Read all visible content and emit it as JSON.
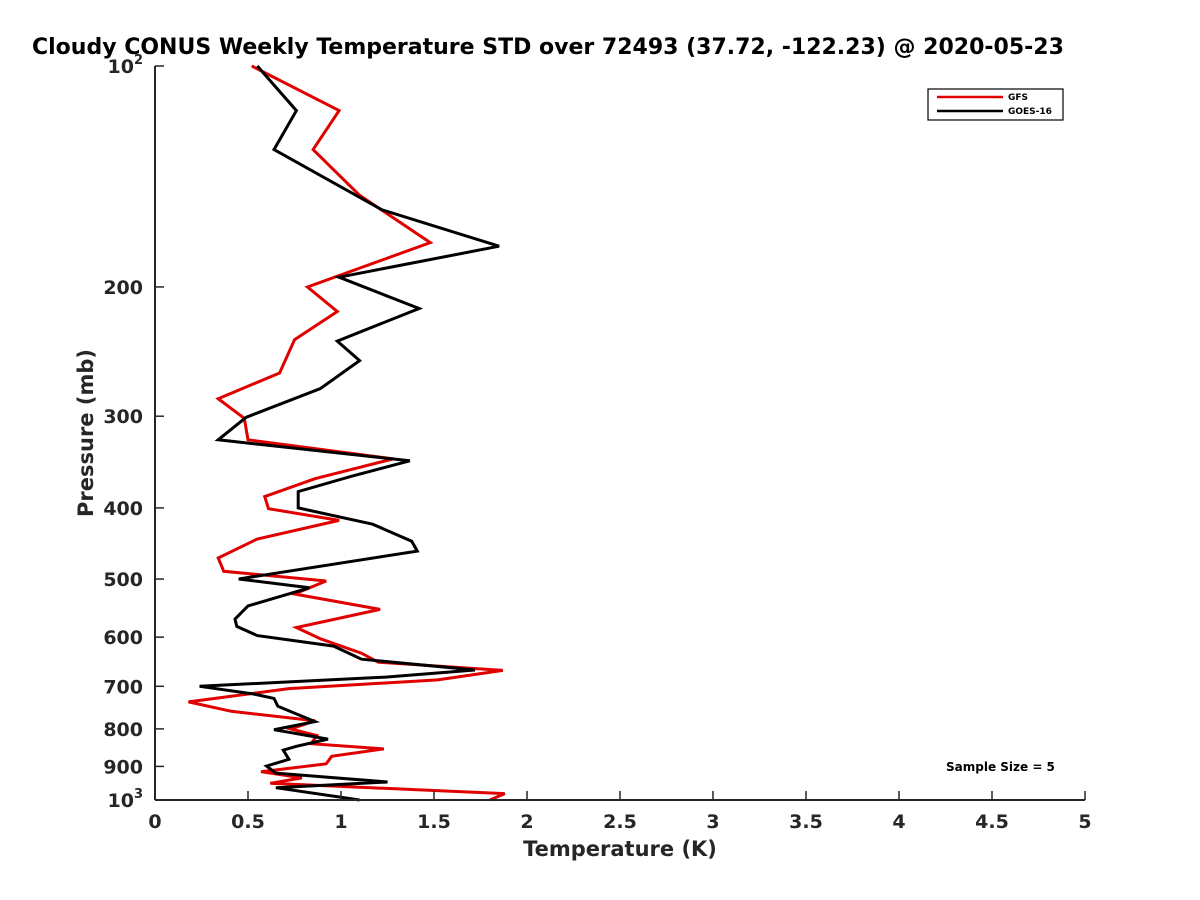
{
  "chart_data": {
    "type": "line",
    "title": "Cloudy CONUS Weekly Temperature STD over 72493 (37.72, -122.23) @ 2020-05-23",
    "xlabel": "Temperature (K)",
    "ylabel": "Pressure (mb)",
    "xlim": [
      0,
      5
    ],
    "ylim": [
      100,
      1000
    ],
    "y_scale": "log",
    "y_reversed": true,
    "grid": false,
    "legend_position": "top-right",
    "annotation": "Sample Size = 5",
    "x_ticks": [
      "0",
      "0.5",
      "1",
      "1.5",
      "2",
      "2.5",
      "3",
      "3.5",
      "4",
      "4.5",
      "5"
    ],
    "y_ticks": [
      {
        "value": 100,
        "base": "10",
        "exp": "2"
      },
      {
        "value": 200,
        "label": "200"
      },
      {
        "value": 300,
        "label": "300"
      },
      {
        "value": 400,
        "label": "400"
      },
      {
        "value": 500,
        "label": "500"
      },
      {
        "value": 600,
        "label": "600"
      },
      {
        "value": 700,
        "label": "700"
      },
      {
        "value": 800,
        "label": "800"
      },
      {
        "value": 900,
        "label": "900"
      },
      {
        "value": 1000,
        "base": "10",
        "exp": "3"
      }
    ],
    "series": [
      {
        "name": "GFS",
        "color": "#e00000",
        "points": [
          [
            0.52,
            100
          ],
          [
            0.99,
            115
          ],
          [
            0.85,
            130
          ],
          [
            1.1,
            150
          ],
          [
            1.48,
            174
          ],
          [
            0.82,
            200
          ],
          [
            0.98,
            216
          ],
          [
            0.75,
            236
          ],
          [
            0.67,
            262
          ],
          [
            0.34,
            284
          ],
          [
            0.48,
            302
          ],
          [
            0.5,
            323
          ],
          [
            1.28,
            343
          ],
          [
            0.86,
            365
          ],
          [
            0.59,
            386
          ],
          [
            0.61,
            401
          ],
          [
            0.99,
            416
          ],
          [
            0.55,
            441
          ],
          [
            0.34,
            468
          ],
          [
            0.37,
            488
          ],
          [
            0.92,
            503
          ],
          [
            0.75,
            524
          ],
          [
            1.21,
            550
          ],
          [
            0.76,
            582
          ],
          [
            0.89,
            603
          ],
          [
            1.11,
            631
          ],
          [
            1.2,
            649
          ],
          [
            1.87,
            666
          ],
          [
            1.52,
            686
          ],
          [
            0.72,
            705
          ],
          [
            0.18,
            735
          ],
          [
            0.41,
            757
          ],
          [
            0.86,
            780
          ],
          [
            0.73,
            800
          ],
          [
            0.87,
            817
          ],
          [
            0.84,
            838
          ],
          [
            1.23,
            852
          ],
          [
            0.95,
            872
          ],
          [
            0.92,
            893
          ],
          [
            0.57,
            915
          ],
          [
            0.79,
            933
          ],
          [
            0.62,
            949
          ],
          [
            1.88,
            980
          ],
          [
            1.8,
            1000
          ]
        ]
      },
      {
        "name": "GOES-16",
        "color": "#000000",
        "points": [
          [
            0.55,
            100
          ],
          [
            0.76,
            115
          ],
          [
            0.64,
            130
          ],
          [
            1.22,
            157
          ],
          [
            1.85,
            176
          ],
          [
            0.99,
            194
          ],
          [
            1.42,
            214
          ],
          [
            0.98,
            237
          ],
          [
            1.1,
            252
          ],
          [
            0.89,
            275
          ],
          [
            0.49,
            301
          ],
          [
            0.34,
            323
          ],
          [
            1.37,
            345
          ],
          [
            1.06,
            362
          ],
          [
            0.77,
            380
          ],
          [
            0.77,
            400
          ],
          [
            1.17,
            421
          ],
          [
            1.38,
            444
          ],
          [
            1.41,
            458
          ],
          [
            0.45,
            500
          ],
          [
            0.83,
            514
          ],
          [
            0.5,
            544
          ],
          [
            0.43,
            567
          ],
          [
            0.44,
            580
          ],
          [
            0.55,
            597
          ],
          [
            0.96,
            617
          ],
          [
            1.11,
            643
          ],
          [
            1.72,
            665
          ],
          [
            1.24,
            680
          ],
          [
            0.24,
            700
          ],
          [
            0.53,
            717
          ],
          [
            0.64,
            727
          ],
          [
            0.66,
            745
          ],
          [
            0.86,
            782
          ],
          [
            0.64,
            802
          ],
          [
            0.93,
            826
          ],
          [
            0.76,
            845
          ],
          [
            0.69,
            855
          ],
          [
            0.72,
            880
          ],
          [
            0.6,
            899
          ],
          [
            0.65,
            919
          ],
          [
            1.25,
            945
          ],
          [
            0.65,
            962
          ],
          [
            1.1,
            1000
          ]
        ]
      }
    ]
  }
}
